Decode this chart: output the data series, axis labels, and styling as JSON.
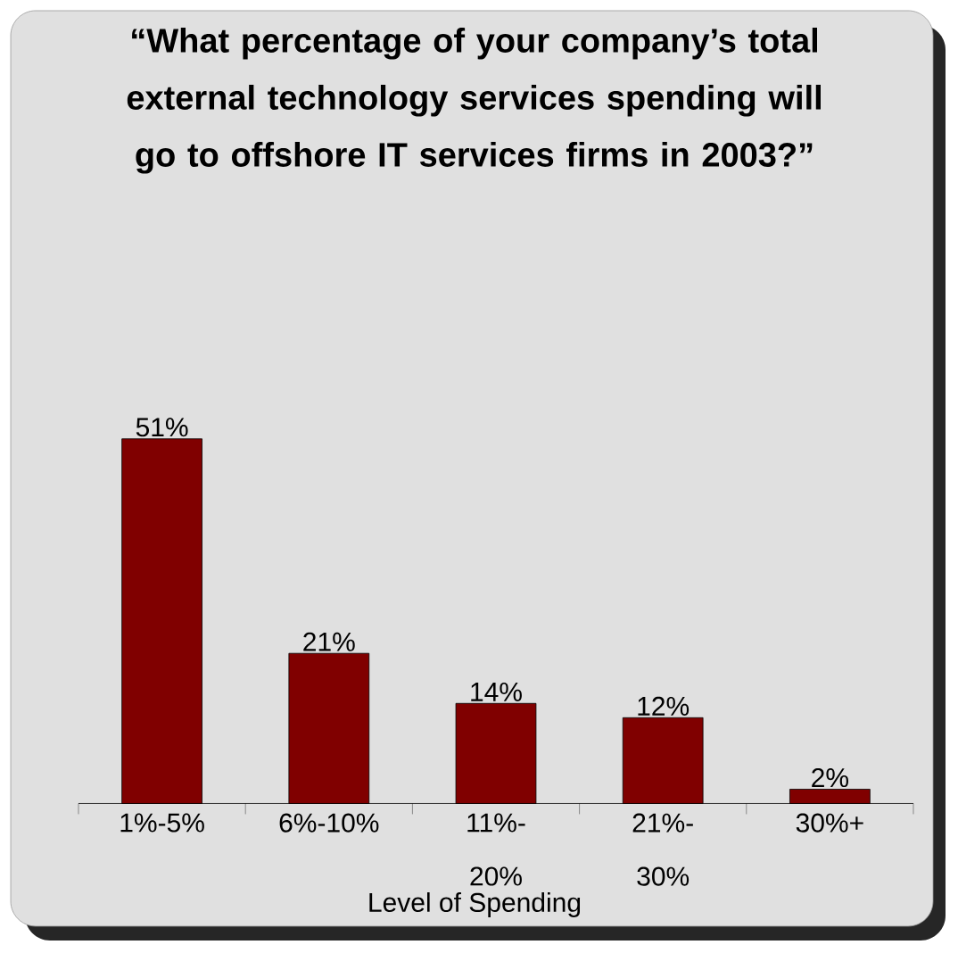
{
  "chart_data": {
    "type": "bar",
    "title": "“What percentage of your company’s total external technology services spending will go to offshore IT services firms in 2003?”",
    "xlabel": "Level of Spending",
    "categories": [
      "1%-5%",
      "6%-10%",
      "11%-20%",
      "21%-30%",
      "30%+"
    ],
    "values": [
      51,
      21,
      14,
      12,
      2
    ],
    "value_labels": [
      "51%",
      "21%",
      "14%",
      "12%",
      "2%"
    ],
    "color": "#800000",
    "legend": false
  }
}
